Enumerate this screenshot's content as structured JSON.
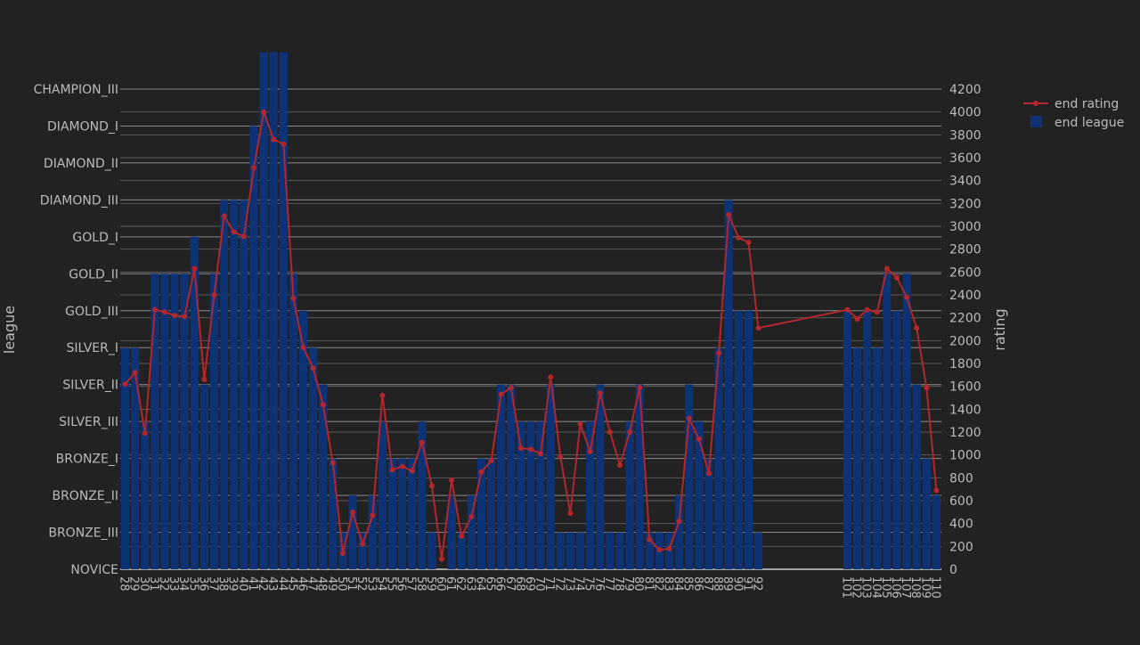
{
  "chart_data": {
    "type": "bar",
    "title": "",
    "legend_position": "top-right",
    "left_axis": {
      "label": "league",
      "categories": [
        "NOVICE",
        "BRONZE_III",
        "BRONZE_II",
        "BRONZE_I",
        "SILVER_III",
        "SILVER_II",
        "SILVER_I",
        "GOLD_III",
        "GOLD_II",
        "GOLD_I",
        "DIAMOND_III",
        "DIAMOND_II",
        "DIAMOND_I",
        "CHAMPION_III"
      ]
    },
    "right_axis": {
      "label": "rating",
      "range": [
        0,
        4200
      ],
      "ticks": [
        0,
        200,
        400,
        600,
        800,
        1000,
        1200,
        1400,
        1600,
        1800,
        2000,
        2200,
        2400,
        2600,
        2800,
        3000,
        3200,
        3400,
        3600,
        3800,
        4000,
        4200
      ]
    },
    "x_range": [
      27.5,
      110.5
    ],
    "x": [
      28,
      29,
      30,
      31,
      32,
      33,
      34,
      35,
      36,
      37,
      38,
      39,
      40,
      41,
      42,
      43,
      44,
      45,
      46,
      47,
      48,
      49,
      50,
      51,
      52,
      53,
      54,
      55,
      56,
      57,
      58,
      59,
      60,
      61,
      62,
      63,
      64,
      65,
      66,
      67,
      68,
      69,
      70,
      71,
      72,
      73,
      74,
      75,
      76,
      77,
      78,
      79,
      80,
      81,
      82,
      83,
      84,
      85,
      86,
      87,
      88,
      89,
      90,
      91,
      92,
      101,
      102,
      103,
      104,
      105,
      106,
      107,
      108,
      109,
      110
    ],
    "series": [
      {
        "name": "end rating",
        "kind": "line",
        "color": "#b2262e",
        "values": [
          1620,
          1720,
          1190,
          2270,
          2250,
          2220,
          2210,
          2630,
          1660,
          2400,
          3090,
          2950,
          2910,
          3510,
          4000,
          3760,
          3720,
          2370,
          1940,
          1760,
          1440,
          930,
          140,
          500,
          220,
          470,
          1520,
          870,
          900,
          860,
          1110,
          730,
          90,
          780,
          290,
          460,
          850,
          950,
          1530,
          1590,
          1060,
          1050,
          1010,
          1680,
          980,
          490,
          1270,
          1030,
          1540,
          1200,
          910,
          1200,
          1590,
          260,
          170,
          180,
          420,
          1320,
          1140,
          840,
          1890,
          3100,
          2900,
          2860,
          2110,
          2270,
          2190,
          2270,
          2250,
          2630,
          2550,
          2380,
          2110,
          1590,
          690
        ]
      },
      {
        "name": "end league",
        "kind": "bar",
        "color": "#0d3276",
        "values": [
          6,
          6,
          4,
          8,
          8,
          8,
          8,
          9,
          5,
          8,
          10,
          10,
          10,
          12,
          14,
          14,
          14,
          8,
          7,
          6,
          5,
          3,
          1,
          2,
          1,
          2,
          4,
          3,
          3,
          3,
          4,
          1,
          0,
          2,
          1,
          2,
          3,
          3,
          5,
          5,
          4,
          4,
          4,
          5,
          1,
          1,
          1,
          4,
          5,
          1,
          1,
          4,
          5,
          1,
          1,
          1,
          2,
          5,
          4,
          3,
          6,
          10,
          7,
          7,
          1,
          7,
          6,
          7,
          6,
          8,
          7,
          8,
          5,
          3,
          2
        ]
      }
    ]
  }
}
